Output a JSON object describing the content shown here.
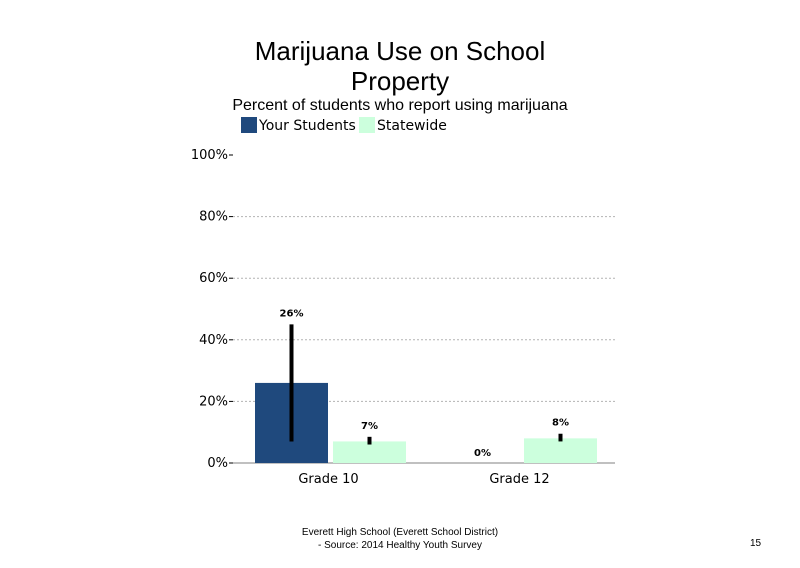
{
  "chart_data": {
    "type": "bar",
    "title_line1": "Marijuana Use on School",
    "title_line2": "Property",
    "subtitle": "Percent of students who report using marijuana",
    "categories": [
      "Grade 10",
      "Grade 12"
    ],
    "series": [
      {
        "name": "Your Students",
        "color": "#1f497d",
        "values": [
          26,
          0
        ],
        "labels": [
          "26%",
          "0%"
        ],
        "error_low": [
          7,
          null
        ],
        "error_high": [
          45,
          null
        ]
      },
      {
        "name": "Statewide",
        "color": "#ccffdd",
        "values": [
          7,
          8
        ],
        "labels": [
          "7%",
          "8%"
        ],
        "error_low": [
          6,
          7
        ],
        "error_high": [
          8.5,
          9.5
        ]
      }
    ],
    "ylim": [
      0,
      100
    ],
    "yticks": [
      0,
      20,
      40,
      60,
      80,
      100
    ],
    "ytick_labels": [
      "0%",
      "20%",
      "40%",
      "60%",
      "80%",
      "100%"
    ],
    "grid": true,
    "legend_position": "top-left"
  },
  "footer": {
    "line1": "Everett High School (Everett School District)",
    "line2": "- Source: 2014 Healthy Youth Survey"
  },
  "page_number": "15"
}
